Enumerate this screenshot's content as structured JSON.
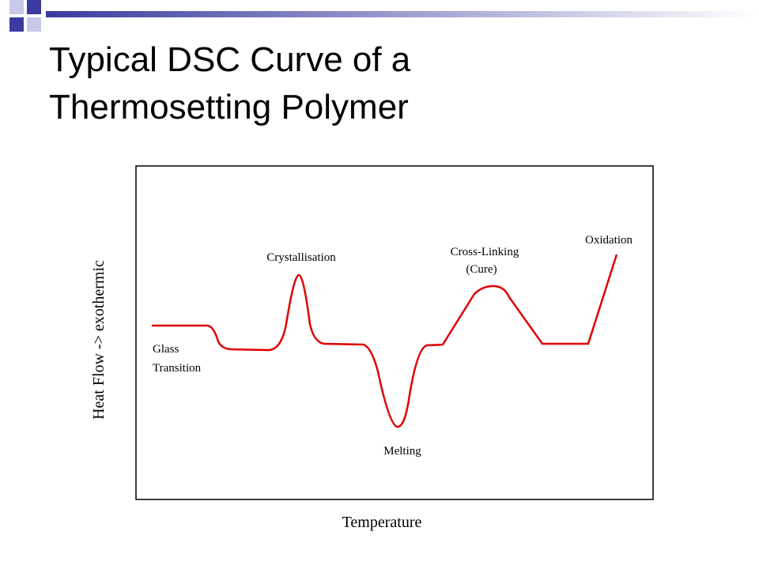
{
  "header": {
    "title_lines": [
      "Typical DSC Curve of a",
      "Thermosetting Polymer"
    ]
  },
  "diagram": {
    "x_axis_label": "Temperature",
    "y_axis_label": "Heat Flow -> exothermic",
    "annotations": {
      "glass": [
        "Glass",
        "Transition"
      ],
      "crystallisation": "Crystallisation",
      "melting": "Melting",
      "cross_linking": [
        "Cross-Linking",
        "(Cure)"
      ],
      "oxidation": "Oxidation"
    }
  }
}
